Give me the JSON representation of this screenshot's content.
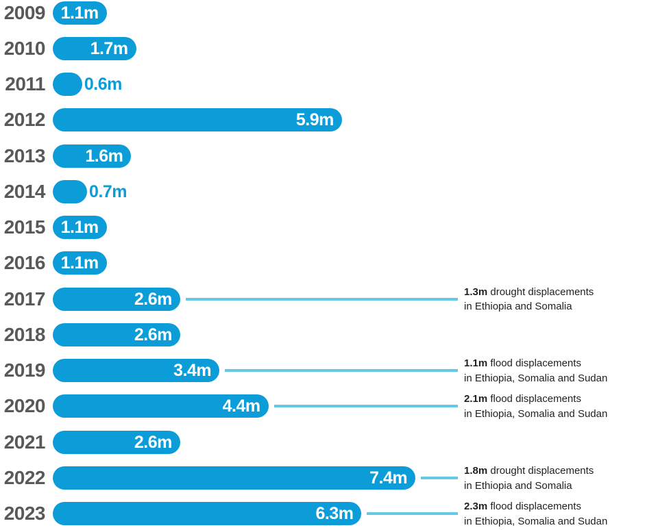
{
  "chart_data": {
    "type": "bar",
    "orientation": "horizontal",
    "title": "",
    "xlabel": "",
    "ylabel": "",
    "unit": "millions of displacements",
    "xlim": [
      0,
      7.4
    ],
    "grid": false,
    "legend": "none",
    "categories": [
      "2009",
      "2010",
      "2011",
      "2012",
      "2013",
      "2014",
      "2015",
      "2016",
      "2017",
      "2018",
      "2019",
      "2020",
      "2021",
      "2022",
      "2023"
    ],
    "values": [
      1.1,
      1.7,
      0.6,
      5.9,
      1.6,
      0.7,
      1.1,
      1.1,
      2.6,
      2.6,
      3.4,
      4.4,
      2.6,
      7.4,
      6.3
    ],
    "value_labels": [
      "1.1m",
      "1.7m",
      "0.6m",
      "5.9m",
      "1.6m",
      "0.7m",
      "1.1m",
      "1.1m",
      "2.6m",
      "2.6m",
      "3.4m",
      "4.4m",
      "2.6m",
      "7.4m",
      "6.3m"
    ],
    "annotations": [
      {
        "category": "2017",
        "value": "1.3m",
        "text": "drought displacements",
        "line2": "in Ethiopia and Somalia"
      },
      {
        "category": "2019",
        "value": "1.1m",
        "text": "flood displacements",
        "line2": "in Ethiopia, Somalia and Sudan"
      },
      {
        "category": "2020",
        "value": "2.1m",
        "text": "flood displacements",
        "line2": "in Ethiopia, Somalia and Sudan"
      },
      {
        "category": "2022",
        "value": "1.8m",
        "text": "drought displacements",
        "line2": "in Ethiopia and Somalia"
      },
      {
        "category": "2023",
        "value": "2.3m",
        "text": "flood displacements",
        "line2": "in Ethiopia, Somalia and Sudan"
      }
    ],
    "colors": {
      "bar": "#0c9cd8",
      "connector_line": "#65c8e4",
      "year_label": "#58595b",
      "value_label_inside": "#ffffff",
      "value_label_outside": "#0c9cd8",
      "annotation_text": "#231f20"
    }
  }
}
